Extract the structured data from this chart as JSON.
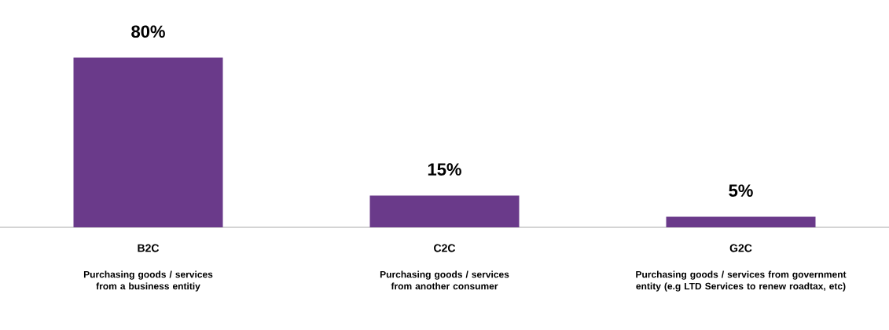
{
  "chart_data": {
    "type": "bar",
    "categories": [
      "B2C",
      "C2C",
      "G2C"
    ],
    "values": [
      80,
      15,
      5
    ],
    "value_labels": [
      "80%",
      "15%",
      "5%"
    ],
    "color": "#6a3a8a",
    "annotations": [
      "Purchasing goods / services from a business entitiy",
      "Purchasing goods / services from another consumer",
      "Purchasing goods / services from government entity (e.g LTD Services to renew roadtax, etc)"
    ]
  }
}
